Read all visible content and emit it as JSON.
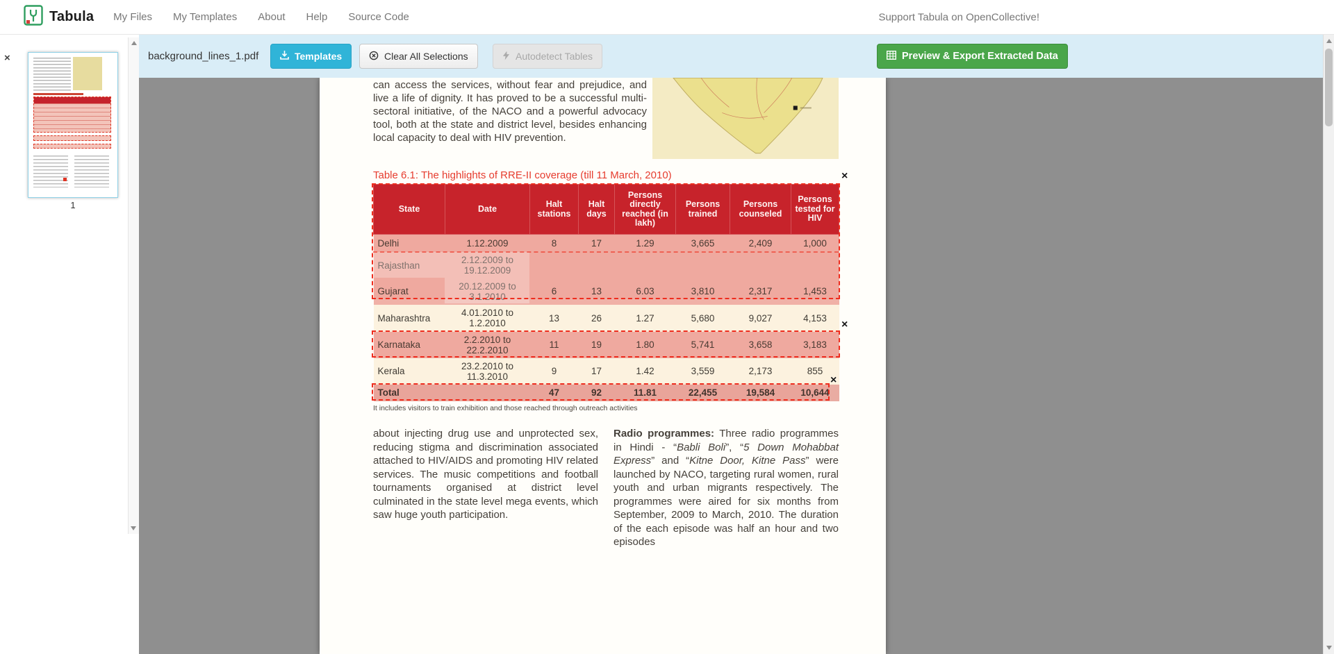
{
  "navbar": {
    "brand": "Tabula",
    "items": [
      {
        "label": "My Files"
      },
      {
        "label": "My Templates"
      },
      {
        "label": "About"
      },
      {
        "label": "Help"
      },
      {
        "label": "Source Code"
      }
    ],
    "support": "Support Tabula on OpenCollective!"
  },
  "toolbar": {
    "filename": "background_lines_1.pdf",
    "templates": "Templates",
    "clear": "Clear All Selections",
    "autodetect": "Autodetect Tables",
    "export": "Preview & Export Extracted Data"
  },
  "sidebar": {
    "page_number": "1",
    "close": "×"
  },
  "colors": {
    "toolbar_bg": "#d9edf7",
    "templates_btn": "#30b4d8",
    "export_btn": "#4aa64a",
    "workspace_bg": "#8f8f8f",
    "table_header": "#c5232c",
    "selection_red": "#ee2d1e"
  },
  "pdf": {
    "top_paragraph": "can access the services, without fear and prejudice, and live a life of dignity. It has proved to be a successful multi-sectoral initiative, of the NACO and a powerful advocacy tool, both at the state and district level, besides enhancing local capacity to deal with HIV prevention.",
    "table_title": "Table 6.1: The highlights of RRE-II coverage (till 11 March, 2010)",
    "table": {
      "headers": [
        "State",
        "Date",
        "Halt stations",
        "Halt days",
        "Persons directly reached (in lakh)",
        "Persons trained",
        "Persons counseled",
        "Persons tested for HIV"
      ],
      "rows": [
        [
          "Delhi",
          "1.12.2009",
          "8",
          "17",
          "1.29",
          "3,665",
          "2,409",
          "1,000"
        ],
        [
          "Rajasthan",
          "2.12.2009 to 19.12.2009",
          "",
          "",
          "",
          "",
          "",
          ""
        ],
        [
          "Gujarat",
          "20.12.2009 to 3.1.2010",
          "6",
          "13",
          "6.03",
          "3,810",
          "2,317",
          "1,453"
        ],
        [
          "Maharashtra",
          "4.01.2010 to 1.2.2010",
          "13",
          "26",
          "1.27",
          "5,680",
          "9,027",
          "4,153"
        ],
        [
          "Karnataka",
          "2.2.2010 to 22.2.2010",
          "11",
          "19",
          "1.80",
          "5,741",
          "3,658",
          "3,183"
        ],
        [
          "Kerala",
          "23.2.2010 to 11.3.2010",
          "9",
          "17",
          "1.42",
          "3,559",
          "2,173",
          "855"
        ],
        [
          "Total",
          "",
          "47",
          "92",
          "11.81",
          "22,455",
          "19,584",
          "10,644"
        ]
      ],
      "footnote": "It includes visitors to train exhibition and those reached through outreach activities"
    },
    "left_column": "about injecting drug use and unprotected sex, reducing stigma and discrimination associated attached to HIV/AIDS and promoting HIV related services. The music competitions and football tournaments organised at district level culminated in the state level mega events, which saw huge youth participation.",
    "right_column_segments": [
      {
        "text": "Radio programmes:",
        "bold": true
      },
      {
        "text": " Three radio programmes in Hindi - “"
      },
      {
        "text": "Babli Boli",
        "italic": true
      },
      {
        "text": "”, “"
      },
      {
        "text": "5 Down Mohabbat Express",
        "italic": true
      },
      {
        "text": "” and “"
      },
      {
        "text": "Kitne Door, Kitne Pass",
        "italic": true
      },
      {
        "text": "” were launched by NACO, targeting rural women, rural youth and urban migrants respectively. The programmes were aired for six months from September, 2009 to March, 2010. The duration of the each episode was half an hour and two episodes"
      }
    ],
    "selection_close": "×"
  }
}
